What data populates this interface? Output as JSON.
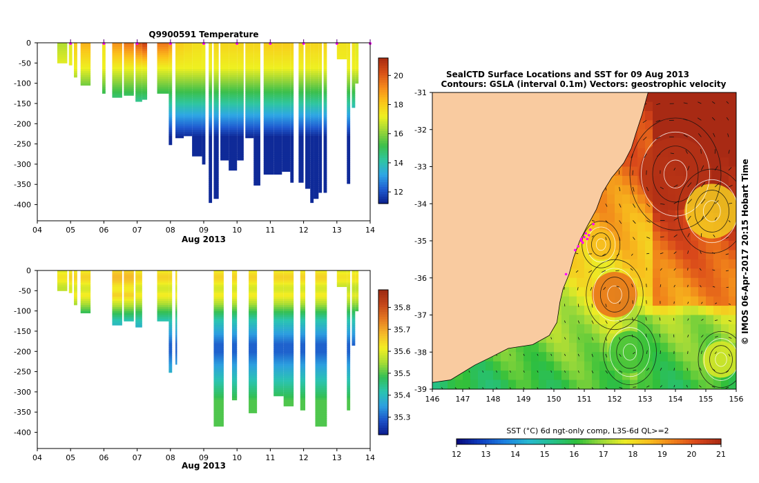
{
  "colors": {
    "land": "#f9cba0",
    "track": "#ff00ff",
    "temperature_scale": [
      "#0b1e8a",
      "#1f5bd0",
      "#2ea6e6",
      "#2fc6a0",
      "#3cbf4a",
      "#9ad638",
      "#eef020",
      "#fbc41a",
      "#f58a1c",
      "#d85016",
      "#a82b10"
    ],
    "salinity_scale": [
      "#0a1a8c",
      "#1c52c8",
      "#2c9fe0",
      "#2bc4b0",
      "#33bf55",
      "#a8dd34",
      "#f3ee22",
      "#f5b82a",
      "#e57a22",
      "#c4471a",
      "#9c2a12"
    ],
    "sst_scale": [
      "#08087a",
      "#0e3ec0",
      "#1c80e0",
      "#26b8d0",
      "#25c08a",
      "#2fbf3b",
      "#98d83a",
      "#ecec25",
      "#f8bf1e",
      "#f0801a",
      "#d8461a",
      "#a82a14"
    ]
  },
  "chart_data": [
    {
      "id": "temperature-section",
      "type": "heatmap",
      "title": "Q9900591  Temperature",
      "xlabel": "Aug 2013",
      "x_ticks": [
        "04",
        "05",
        "06",
        "07",
        "08",
        "09",
        "10",
        "11",
        "12",
        "13",
        "14"
      ],
      "xlim": [
        4,
        14
      ],
      "ylim": [
        -440,
        0
      ],
      "y_ticks": [
        0,
        -50,
        -100,
        -150,
        -200,
        -250,
        -300,
        -350,
        -400
      ],
      "colorbar": {
        "ticks": [
          12,
          14,
          16,
          18,
          20
        ],
        "range": [
          11.2,
          21.2
        ]
      },
      "profile_markers_day": [
        5,
        6,
        7,
        8,
        9,
        10,
        11,
        12,
        13,
        14
      ],
      "profiles": [
        {
          "x": 4.6,
          "w": 0.3,
          "depth": 50,
          "surf": 16.5
        },
        {
          "x": 4.95,
          "w": 0.1,
          "depth": 55,
          "surf": 17.0
        },
        {
          "x": 5.1,
          "w": 0.1,
          "depth": 85,
          "surf": 18.0
        },
        {
          "x": 5.3,
          "w": 0.3,
          "depth": 105,
          "surf": 18.5
        },
        {
          "x": 5.95,
          "w": 0.1,
          "depth": 125,
          "surf": 17.5
        },
        {
          "x": 6.25,
          "w": 0.3,
          "depth": 135,
          "surf": 19.0
        },
        {
          "x": 6.6,
          "w": 0.3,
          "depth": 130,
          "surf": 19.5
        },
        {
          "x": 6.95,
          "w": 0.2,
          "depth": 145,
          "surf": 20.0
        },
        {
          "x": 7.15,
          "w": 0.15,
          "depth": 140,
          "surf": 20.5
        },
        {
          "x": 7.6,
          "w": 0.35,
          "depth": 125,
          "surf": 19.5
        },
        {
          "x": 7.95,
          "w": 0.1,
          "depth": 252,
          "surf": 19.0
        },
        {
          "x": 8.15,
          "w": 0.25,
          "depth": 235,
          "surf": 18.0
        },
        {
          "x": 8.4,
          "w": 0.25,
          "depth": 230,
          "surf": 17.8
        },
        {
          "x": 8.65,
          "w": 0.3,
          "depth": 280,
          "surf": 17.6
        },
        {
          "x": 8.95,
          "w": 0.1,
          "depth": 300,
          "surf": 17.4
        },
        {
          "x": 9.15,
          "w": 0.1,
          "depth": 395,
          "surf": 17.6
        },
        {
          "x": 9.3,
          "w": 0.15,
          "depth": 385,
          "surf": 17.8
        },
        {
          "x": 9.5,
          "w": 0.25,
          "depth": 290,
          "surf": 17.8
        },
        {
          "x": 9.75,
          "w": 0.25,
          "depth": 315,
          "surf": 17.8
        },
        {
          "x": 10.0,
          "w": 0.2,
          "depth": 290,
          "surf": 17.8
        },
        {
          "x": 10.25,
          "w": 0.25,
          "depth": 235,
          "surf": 17.8
        },
        {
          "x": 10.5,
          "w": 0.2,
          "depth": 352,
          "surf": 17.8
        },
        {
          "x": 10.8,
          "w": 0.3,
          "depth": 325,
          "surf": 18.0
        },
        {
          "x": 11.1,
          "w": 0.25,
          "depth": 325,
          "surf": 18.0
        },
        {
          "x": 11.35,
          "w": 0.25,
          "depth": 318,
          "surf": 18.0
        },
        {
          "x": 11.6,
          "w": 0.1,
          "depth": 345,
          "surf": 18.0
        },
        {
          "x": 11.85,
          "w": 0.15,
          "depth": 345,
          "surf": 17.8
        },
        {
          "x": 12.05,
          "w": 0.15,
          "depth": 360,
          "surf": 17.8
        },
        {
          "x": 12.2,
          "w": 0.1,
          "depth": 395,
          "surf": 17.8
        },
        {
          "x": 12.3,
          "w": 0.15,
          "depth": 385,
          "surf": 17.8
        },
        {
          "x": 12.45,
          "w": 0.1,
          "depth": 370,
          "surf": 17.8
        },
        {
          "x": 12.6,
          "w": 0.1,
          "depth": 370,
          "surf": 17.8
        },
        {
          "x": 13.0,
          "w": 0.3,
          "depth": 40,
          "surf": 17.5
        },
        {
          "x": 13.3,
          "w": 0.1,
          "depth": 348,
          "surf": 17.5
        },
        {
          "x": 13.45,
          "w": 0.1,
          "depth": 160,
          "surf": 17.5
        },
        {
          "x": 13.55,
          "w": 0.1,
          "depth": 100,
          "surf": 17.0
        }
      ]
    },
    {
      "id": "salinity-section",
      "type": "heatmap",
      "xlabel": "Aug 2013",
      "x_ticks": [
        "04",
        "05",
        "06",
        "07",
        "08",
        "09",
        "10",
        "11",
        "12",
        "13",
        "14"
      ],
      "xlim": [
        4,
        14
      ],
      "ylim": [
        -440,
        0
      ],
      "y_ticks": [
        0,
        -50,
        -100,
        -150,
        -200,
        -250,
        -300,
        -350,
        -400
      ],
      "colorbar": {
        "ticks": [
          35.3,
          35.4,
          35.5,
          35.6,
          35.7,
          35.8
        ],
        "range": [
          35.22,
          35.88
        ]
      },
      "profiles": [
        {
          "x": 4.6,
          "w": 0.3,
          "depth": 50,
          "surf": 35.6
        },
        {
          "x": 4.95,
          "w": 0.1,
          "depth": 55,
          "surf": 35.62
        },
        {
          "x": 5.1,
          "w": 0.1,
          "depth": 85,
          "surf": 35.62
        },
        {
          "x": 5.3,
          "w": 0.3,
          "depth": 105,
          "surf": 35.62
        },
        {
          "x": 6.25,
          "w": 0.3,
          "depth": 135,
          "surf": 35.65
        },
        {
          "x": 6.6,
          "w": 0.3,
          "depth": 125,
          "surf": 35.65
        },
        {
          "x": 6.95,
          "w": 0.2,
          "depth": 140,
          "surf": 35.62
        },
        {
          "x": 7.6,
          "w": 0.35,
          "depth": 125,
          "surf": 35.62
        },
        {
          "x": 7.95,
          "w": 0.1,
          "depth": 252,
          "surf": 35.62
        },
        {
          "x": 8.15,
          "w": 0.05,
          "depth": 232,
          "surf": 35.62
        },
        {
          "x": 9.3,
          "w": 0.3,
          "depth": 385,
          "surf": 35.62
        },
        {
          "x": 9.85,
          "w": 0.15,
          "depth": 320,
          "surf": 35.62
        },
        {
          "x": 10.35,
          "w": 0.25,
          "depth": 352,
          "surf": 35.62
        },
        {
          "x": 11.1,
          "w": 0.3,
          "depth": 310,
          "surf": 35.62
        },
        {
          "x": 11.4,
          "w": 0.3,
          "depth": 335,
          "surf": 35.62
        },
        {
          "x": 11.9,
          "w": 0.15,
          "depth": 345,
          "surf": 35.62
        },
        {
          "x": 12.35,
          "w": 0.35,
          "depth": 385,
          "surf": 35.62
        },
        {
          "x": 13.0,
          "w": 0.3,
          "depth": 40,
          "surf": 35.6
        },
        {
          "x": 13.3,
          "w": 0.1,
          "depth": 345,
          "surf": 35.6
        },
        {
          "x": 13.45,
          "w": 0.1,
          "depth": 185,
          "surf": 35.6
        },
        {
          "x": 13.55,
          "w": 0.1,
          "depth": 100,
          "surf": 35.6
        }
      ]
    },
    {
      "id": "sst-map",
      "type": "heatmap",
      "title": "SealCTD Surface Locations and SST for 09 Aug 2013",
      "subtitle": "Contours: GSLA (interval 0.1m) Vectors: geostrophic velocity",
      "xlim": [
        146,
        156
      ],
      "ylim": [
        -39,
        -31
      ],
      "x_ticks": [
        146,
        147,
        148,
        149,
        150,
        151,
        152,
        153,
        154,
        155,
        156
      ],
      "y_ticks": [
        -31,
        -32,
        -33,
        -34,
        -35,
        -36,
        -37,
        -38,
        -39
      ],
      "side_label": "© IMOS 06-Apr-2017 20:15 Hobart Time",
      "colorbar": {
        "label": "SST (°C) 6d ngt-only comp, L3S-6d QL>=2",
        "ticks": [
          12,
          13,
          14,
          15,
          16,
          17,
          18,
          19,
          20,
          21
        ],
        "range": [
          12,
          21
        ]
      },
      "coast": [
        [
          146,
          -38.82
        ],
        [
          146.6,
          -38.75
        ],
        [
          147.4,
          -38.35
        ],
        [
          147.9,
          -38.15
        ],
        [
          148.5,
          -37.9
        ],
        [
          149.3,
          -37.8
        ],
        [
          149.85,
          -37.55
        ],
        [
          150.1,
          -37.2
        ],
        [
          150.2,
          -36.65
        ],
        [
          150.3,
          -36.3
        ],
        [
          150.5,
          -35.9
        ],
        [
          150.65,
          -35.45
        ],
        [
          150.85,
          -35.0
        ],
        [
          151.1,
          -34.6
        ],
        [
          151.4,
          -34.15
        ],
        [
          151.6,
          -33.7
        ],
        [
          151.9,
          -33.3
        ],
        [
          152.3,
          -32.9
        ],
        [
          152.55,
          -32.5
        ],
        [
          152.7,
          -32.1
        ],
        [
          152.9,
          -31.6
        ],
        [
          153.1,
          -31.0
        ]
      ],
      "track": [
        [
          150.9,
          -34.95
        ],
        [
          151.0,
          -34.9
        ],
        [
          151.15,
          -34.85
        ],
        [
          151.1,
          -34.95
        ],
        [
          150.95,
          -35.05
        ],
        [
          150.8,
          -35.15
        ],
        [
          150.7,
          -35.25
        ],
        [
          150.9,
          -35.0
        ],
        [
          151.05,
          -34.8
        ],
        [
          151.2,
          -34.7
        ],
        [
          151.3,
          -34.55
        ],
        [
          150.4,
          -35.9
        ]
      ],
      "eddies": [
        {
          "lon": 152.0,
          "lat": -36.45,
          "r": 0.75,
          "sst": 19.6
        },
        {
          "lon": 151.55,
          "lat": -35.1,
          "r": 0.5,
          "sst": 18.6
        },
        {
          "lon": 154.0,
          "lat": -33.2,
          "r": 1.2,
          "sst": 20.8
        },
        {
          "lon": 155.2,
          "lat": -34.2,
          "r": 0.9,
          "sst": 18.3
        },
        {
          "lon": 152.5,
          "lat": -38.0,
          "r": 0.7,
          "sst": 16.2
        },
        {
          "lon": 155.5,
          "lat": -38.2,
          "r": 0.6,
          "sst": 17.6
        }
      ]
    }
  ]
}
